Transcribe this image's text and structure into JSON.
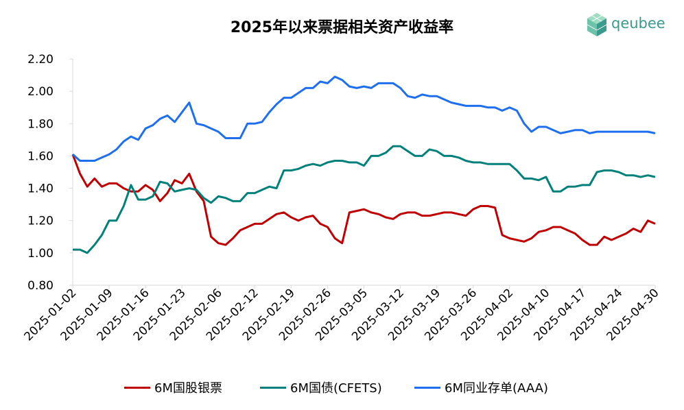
{
  "logo": {
    "text": "qeubee",
    "icon": "cube-logo-icon",
    "color": "#3a9a8e"
  },
  "chart_data": {
    "type": "line",
    "title": "2025年以来票据相关资产收益率",
    "xlabel": "",
    "ylabel": "",
    "ylim": [
      0.8,
      2.2
    ],
    "yticks": [
      "0.80",
      "1.00",
      "1.20",
      "1.40",
      "1.60",
      "1.80",
      "2.00",
      "2.20"
    ],
    "xticks": [
      "2025-01-02",
      "2025-01-09",
      "2025-01-16",
      "2025-01-23",
      "2025-02-06",
      "2025-02-12",
      "2025-02-19",
      "2025-02-26",
      "2025-03-05",
      "2025-03-12",
      "2025-03-19",
      "2025-03-26",
      "2025-04-02",
      "2025-04-10",
      "2025-04-17",
      "2025-04-24",
      "2025-04-30"
    ],
    "grid": false,
    "legend_position": "bottom",
    "series": [
      {
        "name": "6M国股银票",
        "color": "#c00000",
        "values": [
          1.61,
          1.49,
          1.41,
          1.46,
          1.41,
          1.43,
          1.43,
          1.4,
          1.38,
          1.38,
          1.42,
          1.39,
          1.32,
          1.37,
          1.45,
          1.43,
          1.49,
          1.38,
          1.32,
          1.1,
          1.06,
          1.05,
          1.09,
          1.14,
          1.16,
          1.18,
          1.18,
          1.21,
          1.24,
          1.25,
          1.22,
          1.2,
          1.22,
          1.23,
          1.18,
          1.16,
          1.09,
          1.06,
          1.25,
          1.26,
          1.27,
          1.25,
          1.24,
          1.22,
          1.21,
          1.24,
          1.25,
          1.25,
          1.23,
          1.23,
          1.24,
          1.25,
          1.25,
          1.24,
          1.23,
          1.27,
          1.29,
          1.29,
          1.28,
          1.11,
          1.09,
          1.08,
          1.07,
          1.09,
          1.13,
          1.14,
          1.16,
          1.16,
          1.14,
          1.12,
          1.08,
          1.05,
          1.05,
          1.1,
          1.08,
          1.1,
          1.12,
          1.15,
          1.13,
          1.2,
          1.18
        ]
      },
      {
        "name": "6M国债(CFETS)",
        "color": "#00807a",
        "values": [
          1.02,
          1.02,
          1.0,
          1.05,
          1.11,
          1.2,
          1.2,
          1.29,
          1.42,
          1.33,
          1.33,
          1.35,
          1.44,
          1.43,
          1.38,
          1.39,
          1.4,
          1.39,
          1.34,
          1.31,
          1.35,
          1.34,
          1.32,
          1.32,
          1.37,
          1.37,
          1.39,
          1.41,
          1.4,
          1.51,
          1.51,
          1.52,
          1.54,
          1.55,
          1.54,
          1.56,
          1.57,
          1.57,
          1.56,
          1.56,
          1.54,
          1.6,
          1.6,
          1.62,
          1.66,
          1.66,
          1.63,
          1.6,
          1.6,
          1.64,
          1.63,
          1.6,
          1.6,
          1.59,
          1.57,
          1.56,
          1.56,
          1.55,
          1.55,
          1.55,
          1.55,
          1.51,
          1.46,
          1.46,
          1.45,
          1.47,
          1.38,
          1.38,
          1.41,
          1.41,
          1.42,
          1.42,
          1.5,
          1.51,
          1.51,
          1.5,
          1.48,
          1.48,
          1.47,
          1.48,
          1.47
        ]
      },
      {
        "name": "6M同业存单(AAA)",
        "color": "#1e6ff0",
        "values": [
          1.61,
          1.57,
          1.57,
          1.57,
          1.59,
          1.61,
          1.64,
          1.69,
          1.72,
          1.7,
          1.77,
          1.79,
          1.83,
          1.85,
          1.81,
          1.87,
          1.93,
          1.8,
          1.79,
          1.77,
          1.75,
          1.71,
          1.71,
          1.71,
          1.8,
          1.8,
          1.81,
          1.87,
          1.92,
          1.96,
          1.96,
          1.99,
          2.02,
          2.02,
          2.06,
          2.05,
          2.09,
          2.07,
          2.03,
          2.02,
          2.03,
          2.02,
          2.05,
          2.05,
          2.05,
          2.02,
          1.97,
          1.96,
          1.98,
          1.97,
          1.97,
          1.95,
          1.93,
          1.92,
          1.91,
          1.91,
          1.91,
          1.9,
          1.9,
          1.88,
          1.9,
          1.88,
          1.8,
          1.75,
          1.78,
          1.78,
          1.76,
          1.74,
          1.75,
          1.76,
          1.76,
          1.74,
          1.75,
          1.75,
          1.75,
          1.75,
          1.75,
          1.75,
          1.75,
          1.75,
          1.74
        ]
      }
    ]
  }
}
